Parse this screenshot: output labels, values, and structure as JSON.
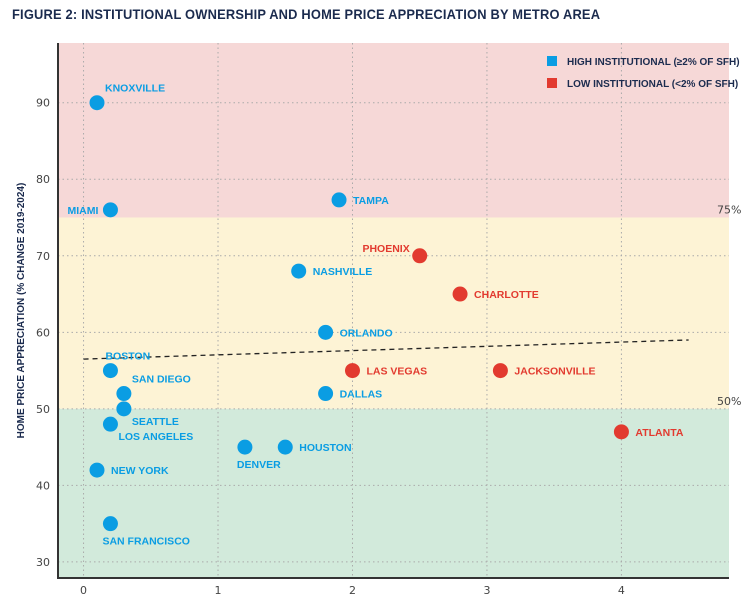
{
  "chart_data": {
    "type": "scatter",
    "title": "FIGURE 2: INSTITUTIONAL OWNERSHIP AND HOME PRICE APPRECIATION BY METRO AREA",
    "xlabel": "",
    "ylabel": "HOME PRICE APPRECIATION (% CHANGE 2019-2024)",
    "xlim": [
      -0.19,
      4.8
    ],
    "ylim": [
      27.9,
      97.8
    ],
    "xticks": [
      "0",
      "1",
      "2",
      "3",
      "4"
    ],
    "yticks": [
      "30",
      "40",
      "50",
      "60",
      "70",
      "80",
      "90"
    ],
    "grid": true,
    "legend_position": "top-right",
    "bands": [
      {
        "from": 75,
        "to": 97.8,
        "color": "#f6d8d7",
        "label": "75%"
      },
      {
        "from": 50,
        "to": 75,
        "color": "#fdf3d5",
        "label": "50%"
      },
      {
        "from": 27.9,
        "to": 50,
        "color": "#d2eadb",
        "label": ""
      }
    ],
    "trendline": {
      "x": [
        0,
        4.5
      ],
      "y": [
        56.5,
        59
      ]
    },
    "series": [
      {
        "name": "HIGH INSTITUTIONAL (≥2% OF SFH)",
        "color": "#0a9de3",
        "points": [
          {
            "label": "KNOXVILLE",
            "x": 0.1,
            "y": 90,
            "label_pos": "above-right"
          },
          {
            "label": "MIAMI",
            "x": 0.2,
            "y": 76,
            "label_pos": "left"
          },
          {
            "label": "TAMPA",
            "x": 1.9,
            "y": 77.3,
            "label_pos": "right"
          },
          {
            "label": "NASHVILLE",
            "x": 1.6,
            "y": 68,
            "label_pos": "right"
          },
          {
            "label": "ORLANDO",
            "x": 1.8,
            "y": 60,
            "label_pos": "right"
          },
          {
            "label": "BOSTON",
            "x": 0.2,
            "y": 55,
            "label_pos": "above"
          },
          {
            "label": "SAN DIEGO",
            "x": 0.3,
            "y": 52,
            "label_pos": "above-right"
          },
          {
            "label": "SEATTLE",
            "x": 0.3,
            "y": 50,
            "label_pos": "below-right"
          },
          {
            "label": "LOS ANGELES",
            "x": 0.2,
            "y": 48,
            "label_pos": "below-right"
          },
          {
            "label": "NEW YORK",
            "x": 0.1,
            "y": 42,
            "label_pos": "right"
          },
          {
            "label": "SAN FRANCISCO",
            "x": 0.2,
            "y": 35,
            "label_pos": "below"
          },
          {
            "label": "DENVER",
            "x": 1.2,
            "y": 45,
            "label_pos": "below"
          },
          {
            "label": "HOUSTON",
            "x": 1.5,
            "y": 45,
            "label_pos": "right"
          },
          {
            "label": "DALLAS",
            "x": 1.8,
            "y": 52,
            "label_pos": "right"
          }
        ]
      },
      {
        "name": "LOW INSTITUTIONAL (<2% OF SFH)",
        "color": "#e23a2f",
        "points": [
          {
            "label": "PHOENIX",
            "x": 2.5,
            "y": 70,
            "label_pos": "above-left"
          },
          {
            "label": "CHARLOTTE",
            "x": 2.8,
            "y": 65,
            "label_pos": "right"
          },
          {
            "label": "LAS VEGAS",
            "x": 2.0,
            "y": 55,
            "label_pos": "right"
          },
          {
            "label": "JACKSONVILLE",
            "x": 3.1,
            "y": 55,
            "label_pos": "right"
          },
          {
            "label": "ATLANTA",
            "x": 4.0,
            "y": 47,
            "label_pos": "right"
          }
        ]
      }
    ]
  }
}
